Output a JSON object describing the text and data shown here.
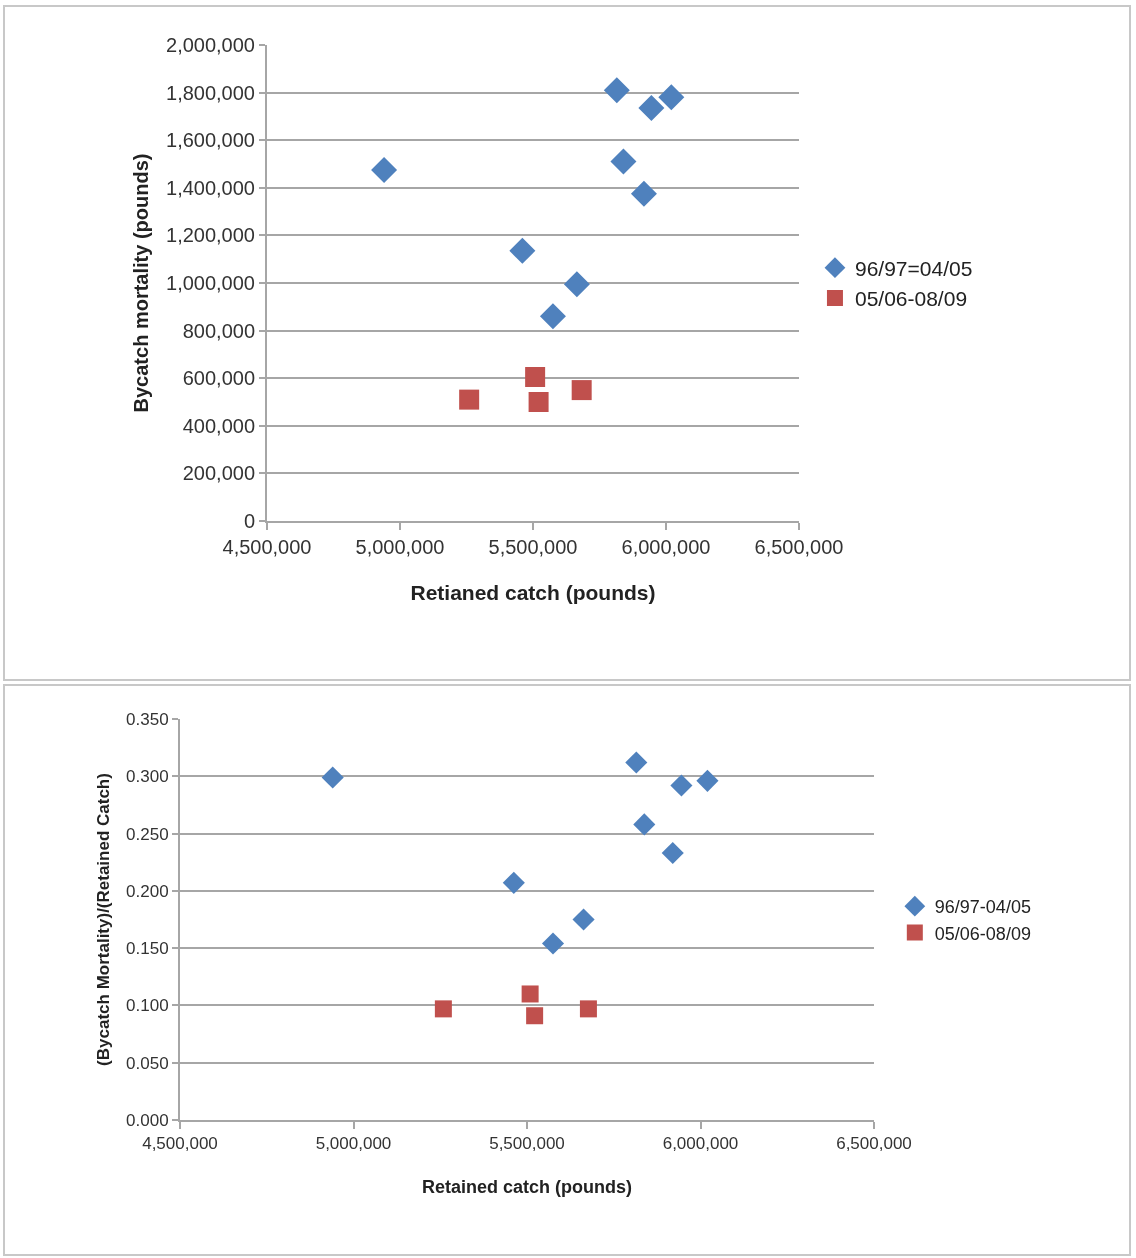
{
  "chart_data": [
    {
      "type": "scatter",
      "xlabel": "Retianed catch (pounds)",
      "ylabel": "Bycatch mortality (pounds)",
      "grid": "y",
      "legend": "right",
      "xlim": [
        4500000,
        6500000
      ],
      "xticks": [
        {
          "value": 4500000,
          "label": "4,500,000"
        },
        {
          "value": 5000000,
          "label": "5,000,000"
        },
        {
          "value": 5500000,
          "label": "5,500,000"
        },
        {
          "value": 6000000,
          "label": "6,000,000"
        },
        {
          "value": 6500000,
          "label": "6,500,000"
        }
      ],
      "ylim": [
        0,
        2000000
      ],
      "yticks": [
        0,
        {
          "value": 200000,
          "label": "200,000"
        },
        {
          "value": 400000,
          "label": "400,000"
        },
        {
          "value": 600000,
          "label": "600,000"
        },
        {
          "value": 800000,
          "label": "800,000"
        },
        {
          "value": 1000000,
          "label": "1,000,000"
        },
        {
          "value": 1200000,
          "label": "1,200,000"
        },
        {
          "value": 1400000,
          "label": "1,400,000"
        },
        {
          "value": 1600000,
          "label": "1,600,000"
        },
        {
          "value": 1800000,
          "label": "1,800,000"
        },
        {
          "value": 2000000,
          "label": "2,000,000"
        }
      ],
      "series": [
        {
          "name": "96/97=04/05",
          "color": "#4f81bd",
          "marker": "diamond",
          "x": [
            4940000,
            5460000,
            5665000,
            5575000,
            5815000,
            5945000,
            6020000,
            5840000,
            5917000
          ],
          "values": [
            1475000,
            1135000,
            995000,
            860000,
            1810000,
            1735000,
            1780000,
            1510000,
            1375000
          ]
        },
        {
          "name": "05/06-08/09",
          "color": "#c0504d",
          "marker": "square",
          "x": [
            5260000,
            5508000,
            5521000,
            5683000
          ],
          "values": [
            510000,
            605000,
            500000,
            550000
          ]
        }
      ]
    },
    {
      "type": "scatter",
      "xlabel": "Retained catch (pounds)",
      "ylabel": "(Bycatch Mortality)/(Retained Catch)",
      "grid": "y",
      "legend": "right",
      "xlim": [
        4500000,
        6500000
      ],
      "xticks": [
        {
          "value": 4500000,
          "label": "4,500,000"
        },
        {
          "value": 5000000,
          "label": "5,000,000"
        },
        {
          "value": 5500000,
          "label": "5,500,000"
        },
        {
          "value": 6000000,
          "label": "6,000,000"
        },
        {
          "value": 6500000,
          "label": "6,500,000"
        }
      ],
      "ylim": [
        0,
        0.35
      ],
      "yticks": [
        {
          "value": 0,
          "label": "0.000"
        },
        {
          "value": 0.05,
          "label": "0.050"
        },
        {
          "value": 0.1,
          "label": "0.100"
        },
        {
          "value": 0.15,
          "label": "0.150"
        },
        {
          "value": 0.2,
          "label": "0.200"
        },
        {
          "value": 0.25,
          "label": "0.250"
        },
        {
          "value": 0.3,
          "label": "0.300"
        },
        {
          "value": 0.35,
          "label": "0.350"
        }
      ],
      "series": [
        {
          "name": "96/97-04/05",
          "color": "#4f81bd",
          "marker": "diamond",
          "x": [
            4940000,
            5815000,
            5945000,
            6020000,
            5838000,
            5920000,
            5462000,
            5663000,
            5575000
          ],
          "values": [
            0.299,
            0.312,
            0.292,
            0.296,
            0.258,
            0.233,
            0.207,
            0.175,
            0.154
          ]
        },
        {
          "name": "05/06-08/09",
          "color": "#c0504d",
          "marker": "square",
          "x": [
            5259000,
            5509000,
            5522000,
            5677000
          ],
          "values": [
            0.097,
            0.11,
            0.091,
            0.097
          ]
        }
      ]
    }
  ]
}
